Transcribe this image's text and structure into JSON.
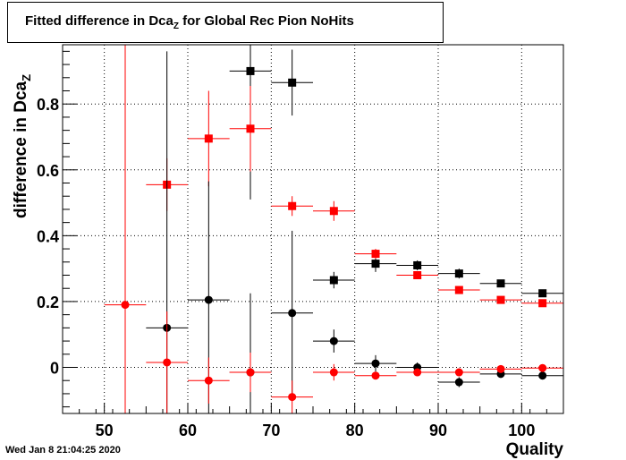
{
  "title": {
    "prefix": "Fitted difference in Dca",
    "subscript": "Z",
    "suffix": " for Global Rec Pion NoHits"
  },
  "timestamp": "Wed Jan  8 21:04:25 2020",
  "chart_data": {
    "type": "scatter",
    "xlabel": "Quality",
    "ylabel": {
      "prefix": "difference in Dca",
      "subscript": "Z"
    },
    "xlim": [
      45,
      105
    ],
    "ylim": [
      -0.14,
      0.98
    ],
    "xticks": [
      50,
      60,
      70,
      80,
      90,
      100
    ],
    "yticks": [
      0,
      0.2,
      0.4,
      0.6,
      0.8
    ],
    "ytick_labels": [
      "0",
      "0.2",
      "0.4",
      "0.6",
      "0.8"
    ],
    "grid": true,
    "series": [
      {
        "color": "#000000",
        "marker": "square",
        "points": [
          {
            "x": 67.5,
            "y": 0.9,
            "yerr": [
              0.39,
              0.39
            ]
          },
          {
            "x": 72.5,
            "y": 0.865,
            "yerr": [
              0.1,
              0.1
            ]
          },
          {
            "x": 77.5,
            "y": 0.265,
            "yerr": [
              0.025,
              0.025
            ]
          },
          {
            "x": 82.5,
            "y": 0.315,
            "yerr": [
              0.025,
              0.025
            ]
          },
          {
            "x": 87.5,
            "y": 0.31,
            "yerr": [
              0.015,
              0.015
            ]
          },
          {
            "x": 92.5,
            "y": 0.285,
            "yerr": [
              0.015,
              0.015
            ]
          },
          {
            "x": 97.5,
            "y": 0.255,
            "yerr": [
              0.01,
              0.01
            ]
          },
          {
            "x": 102.5,
            "y": 0.225,
            "yerr": [
              0.01,
              0.01
            ]
          }
        ]
      },
      {
        "color": "#ff0000",
        "marker": "square",
        "points": [
          {
            "x": 57.5,
            "y": 0.555,
            "yerr": [
              0.08,
              0.08
            ]
          },
          {
            "x": 62.5,
            "y": 0.695,
            "yerr": [
              0.145,
              0.145
            ]
          },
          {
            "x": 67.5,
            "y": 0.725,
            "yerr": [
              0.13,
              0.13
            ]
          },
          {
            "x": 72.5,
            "y": 0.49,
            "yerr": [
              0.03,
              0.03
            ]
          },
          {
            "x": 77.5,
            "y": 0.475,
            "yerr": [
              0.03,
              0.03
            ]
          },
          {
            "x": 82.5,
            "y": 0.345,
            "yerr": [
              0.015,
              0.015
            ]
          },
          {
            "x": 87.5,
            "y": 0.28,
            "yerr": [
              0.01,
              0.01
            ]
          },
          {
            "x": 92.5,
            "y": 0.235,
            "yerr": [
              0.008,
              0.008
            ]
          },
          {
            "x": 97.5,
            "y": 0.205,
            "yerr": [
              0.007,
              0.007
            ]
          },
          {
            "x": 102.5,
            "y": 0.195,
            "yerr": [
              0.007,
              0.007
            ]
          }
        ]
      },
      {
        "color": "#000000",
        "marker": "circle",
        "points": [
          {
            "x": 57.5,
            "y": 0.12,
            "yerr": [
              0.28,
              0.84
            ]
          },
          {
            "x": 62.5,
            "y": 0.205,
            "yerr": [
              0.36,
              0.36
            ]
          },
          {
            "x": 67.5,
            "y": -0.015,
            "yerr": [
              0.24,
              0.24
            ]
          },
          {
            "x": 72.5,
            "y": 0.165,
            "yerr": [
              0.25,
              0.25
            ]
          },
          {
            "x": 77.5,
            "y": 0.08,
            "yerr": [
              0.035,
              0.035
            ]
          },
          {
            "x": 82.5,
            "y": 0.012,
            "yerr": [
              0.025,
              0.025
            ]
          },
          {
            "x": 87.5,
            "y": 0.0,
            "yerr": [
              0.015,
              0.015
            ]
          },
          {
            "x": 92.5,
            "y": -0.045,
            "yerr": [
              0.015,
              0.015
            ]
          },
          {
            "x": 97.5,
            "y": -0.02,
            "yerr": [
              0.01,
              0.01
            ]
          },
          {
            "x": 102.5,
            "y": -0.025,
            "yerr": [
              0.01,
              0.01
            ]
          }
        ]
      },
      {
        "color": "#ff0000",
        "marker": "circle",
        "points": [
          {
            "x": 52.5,
            "y": 0.19,
            "yerr": [
              0.33,
              0.79
            ]
          },
          {
            "x": 57.5,
            "y": 0.015,
            "yerr": [
              0.155,
              0.155
            ]
          },
          {
            "x": 62.5,
            "y": -0.04,
            "yerr": [
              0.07,
              0.07
            ]
          },
          {
            "x": 67.5,
            "y": -0.015,
            "yerr": [
              0.06,
              0.06
            ]
          },
          {
            "x": 72.5,
            "y": -0.09,
            "yerr": [
              0.05,
              0.05
            ]
          },
          {
            "x": 77.5,
            "y": -0.015,
            "yerr": [
              0.025,
              0.025
            ]
          },
          {
            "x": 82.5,
            "y": -0.025,
            "yerr": [
              0.01,
              0.01
            ]
          },
          {
            "x": 87.5,
            "y": -0.015,
            "yerr": [
              0.008,
              0.008
            ]
          },
          {
            "x": 92.5,
            "y": -0.015,
            "yerr": [
              0.007,
              0.007
            ]
          },
          {
            "x": 97.5,
            "y": -0.005,
            "yerr": [
              0.007,
              0.007
            ]
          },
          {
            "x": 102.5,
            "y": -0.002,
            "yerr": [
              0.007,
              0.007
            ]
          }
        ]
      }
    ]
  }
}
